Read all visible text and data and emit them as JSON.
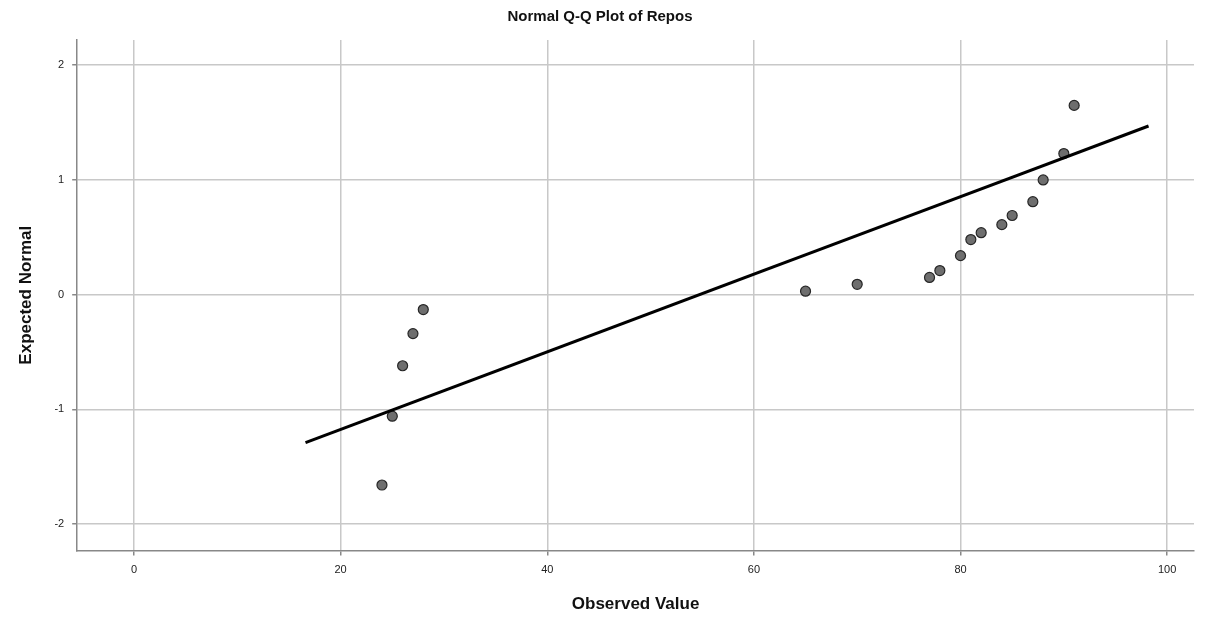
{
  "chart_data": {
    "type": "scatter",
    "title": "Normal Q-Q Plot of Repos",
    "xlabel": "Observed Value",
    "ylabel": "Expected Normal",
    "xlim": [
      -5.5,
      102.6
    ],
    "ylim": [
      -2.23,
      2.22
    ],
    "xticks": [
      0,
      20,
      40,
      60,
      80,
      100
    ],
    "yticks": [
      -2,
      -1,
      0,
      1,
      2
    ],
    "grid": true,
    "legend": false,
    "marker": "circle",
    "series": [
      {
        "type": "scatter",
        "color": "#6e6e6e",
        "x": [
          24,
          25,
          26,
          27,
          28,
          65,
          70,
          77,
          78,
          80,
          81,
          82,
          84,
          85,
          87,
          88,
          90,
          91
        ],
        "values": [
          -1.66,
          -1.06,
          -0.62,
          -0.34,
          -0.13,
          0.03,
          0.09,
          0.15,
          0.21,
          0.34,
          0.48,
          0.54,
          0.61,
          0.69,
          0.81,
          1.0,
          1.23,
          1.65
        ]
      },
      {
        "type": "line",
        "color": "#000000",
        "marker": "none",
        "x": [
          16.6,
          98.2
        ],
        "values": [
          -1.29,
          1.47
        ]
      }
    ]
  }
}
